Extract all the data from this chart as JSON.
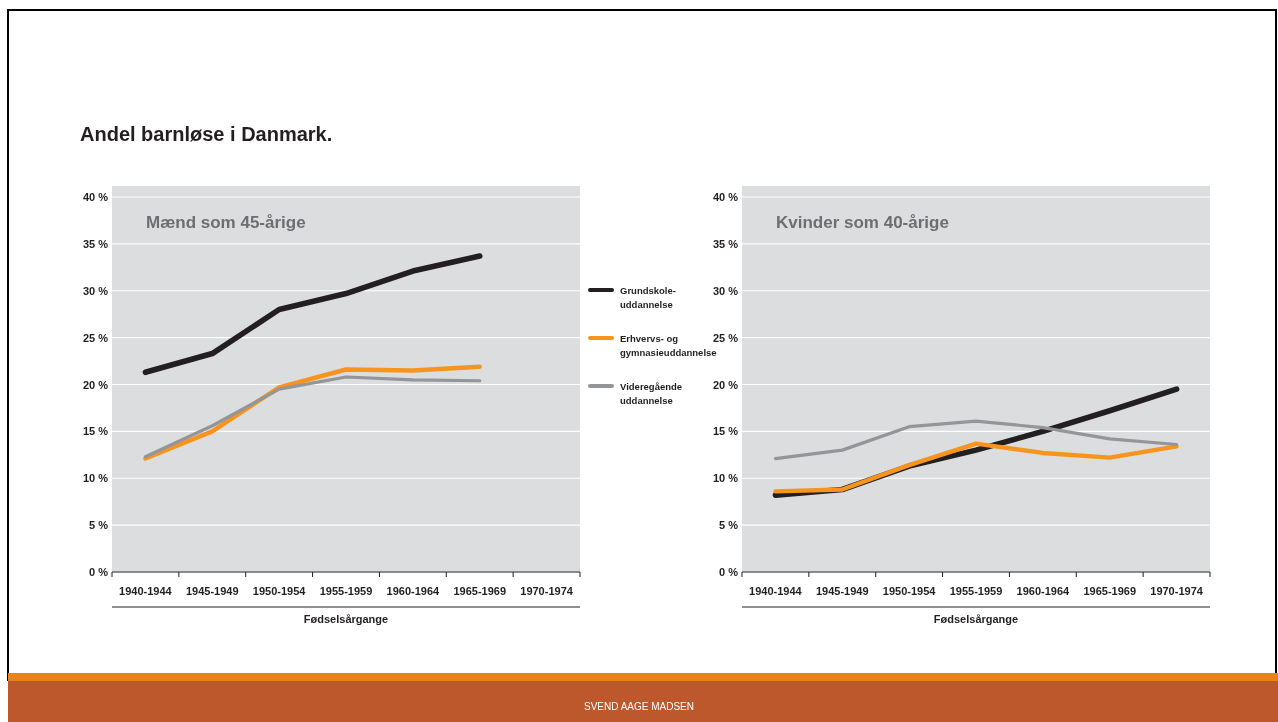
{
  "chart_data": [
    {
      "type": "line",
      "title": "Andel barnløse i Danmark.",
      "subtitle": "Mænd som 45-årige",
      "xlabel": "Fødselsårgange",
      "categories": [
        "1940-1944",
        "1945-1949",
        "1950-1954",
        "1955-1959",
        "1960-1964",
        "1965-1969",
        "1970-1974"
      ],
      "series": [
        {
          "name": "Grundskole-uddannelse",
          "color": "#231f20",
          "values": [
            21.3,
            23.3,
            28.0,
            29.7,
            32.1,
            33.7,
            null
          ]
        },
        {
          "name": "Erhvervs- og gymnasieuddannelse",
          "color": "#f7941d",
          "values": [
            12.1,
            15.0,
            19.7,
            21.6,
            21.5,
            21.9,
            null
          ]
        },
        {
          "name": "Videregående uddannelse",
          "color": "#939598",
          "values": [
            12.3,
            15.6,
            19.5,
            20.8,
            20.5,
            20.4,
            null
          ]
        }
      ],
      "ylim": [
        0,
        40
      ],
      "yticks": [
        {
          "value": 0,
          "label": "0 %"
        },
        {
          "value": 5,
          "label": "5 %"
        },
        {
          "value": 10,
          "label": "10 %"
        },
        {
          "value": 15,
          "label": "15 %"
        },
        {
          "value": 20,
          "label": "20 %"
        },
        {
          "value": 25,
          "label": "25 %"
        },
        {
          "value": 30,
          "label": "30 %"
        },
        {
          "value": 35,
          "label": "35 %"
        },
        {
          "value": 40,
          "label": "40 %"
        }
      ],
      "grid": "y",
      "legend": "right",
      "annotations": [
        "SVEND AAGE MADSEN"
      ]
    },
    {
      "type": "line",
      "subtitle": "Kvinder som 40-årige",
      "xlabel": "Fødselsårgange",
      "categories": [
        "1940-1944",
        "1945-1949",
        "1950-1954",
        "1955-1959",
        "1960-1964",
        "1965-1969",
        "1970-1974"
      ],
      "series": [
        {
          "color": "#231f20",
          "values": [
            8.2,
            8.8,
            11.3,
            13.0,
            15.0,
            17.2,
            19.5
          ]
        },
        {
          "color": "#f7941d",
          "values": [
            8.6,
            8.8,
            11.4,
            13.7,
            12.7,
            12.2,
            13.4
          ]
        },
        {
          "color": "#939598",
          "values": [
            12.1,
            13.0,
            15.5,
            16.1,
            15.4,
            14.2,
            13.6
          ]
        }
      ],
      "ylim": [
        0,
        40
      ],
      "yticks": [
        {
          "value": 0,
          "label": "0 %"
        },
        {
          "value": 5,
          "label": "5 %"
        },
        {
          "value": 10,
          "label": "10 %"
        },
        {
          "value": 15,
          "label": "15 %"
        },
        {
          "value": 20,
          "label": "20 %"
        },
        {
          "value": 25,
          "label": "25 %"
        },
        {
          "value": 30,
          "label": "30 %"
        },
        {
          "value": 35,
          "label": "35 %"
        },
        {
          "value": 40,
          "label": "40 %"
        }
      ],
      "grid": "y",
      "legend": false
    }
  ]
}
